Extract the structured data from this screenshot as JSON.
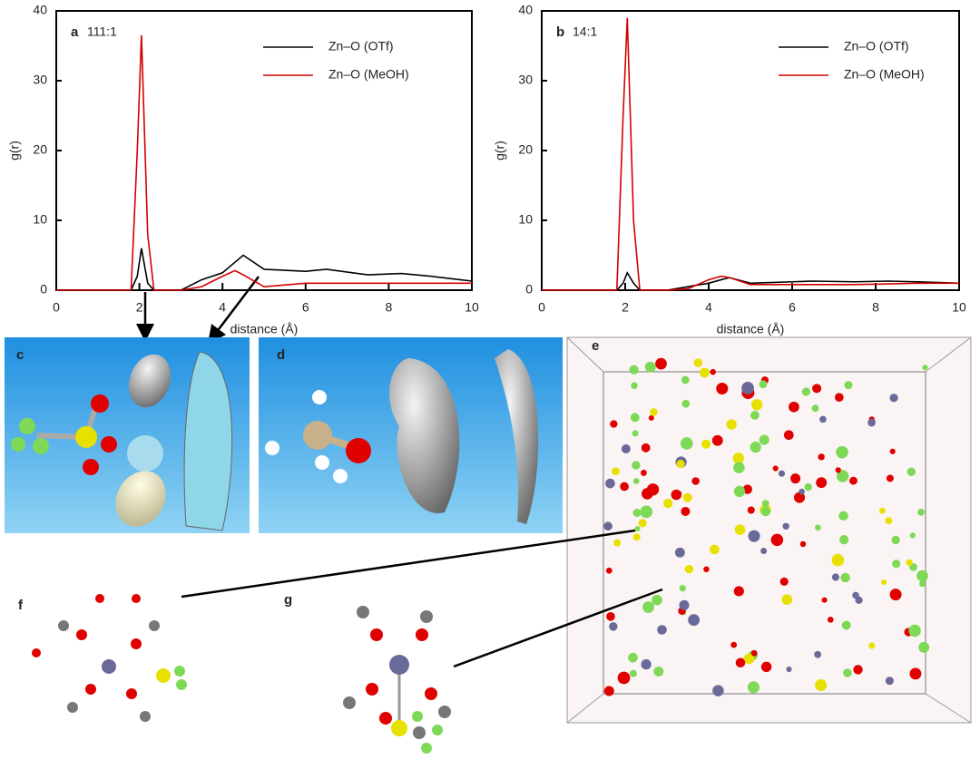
{
  "chart_data": [
    {
      "type": "line",
      "panel": "a",
      "annotation": "111:1",
      "xlabel": "distance (Å)",
      "ylabel": "g(r)",
      "x": [
        0,
        1.8,
        1.95,
        2.05,
        2.2,
        2.35,
        3,
        3.5,
        4,
        4.3,
        4.5,
        5,
        6,
        6.5,
        7.5,
        8.3,
        9,
        10
      ],
      "series": [
        {
          "name": "Zn–O (OTf)",
          "color": "#000000",
          "values": [
            0,
            0,
            2,
            6,
            1,
            0,
            0,
            1.5,
            2.5,
            4,
            5,
            3,
            2.7,
            3,
            2.2,
            2.4,
            2,
            1.3
          ]
        },
        {
          "name": "Zn–O (MeOH)",
          "color": "#d40000",
          "values": [
            0,
            0,
            20,
            36.5,
            8,
            0,
            0,
            0.5,
            2,
            2.8,
            2.2,
            0.5,
            1,
            1,
            1,
            1,
            1,
            1
          ]
        }
      ],
      "xlim": [
        0,
        10
      ],
      "xticks": [
        0,
        2,
        4,
        6,
        8,
        10
      ],
      "ylim": [
        0,
        40
      ],
      "yticks": [
        0,
        10,
        20,
        30,
        40
      ]
    },
    {
      "type": "line",
      "panel": "b",
      "annotation": "14:1",
      "xlabel": "distance (Å)",
      "ylabel": "g(r)",
      "x": [
        0,
        1.8,
        1.95,
        2.05,
        2.2,
        2.35,
        3,
        3.5,
        4,
        4.3,
        4.5,
        5,
        6,
        6.5,
        7.5,
        8.3,
        9,
        10
      ],
      "series": [
        {
          "name": "Zn–O (OTf)",
          "color": "#000000",
          "values": [
            0,
            0,
            1,
            2.5,
            1,
            0,
            0,
            0.5,
            1,
            1.5,
            1.8,
            1,
            1.2,
            1.3,
            1.2,
            1.3,
            1.2,
            1
          ]
        },
        {
          "name": "Zn–O (MeOH)",
          "color": "#d40000",
          "values": [
            0,
            0,
            25,
            39,
            10,
            0,
            0,
            0.2,
            1.5,
            2,
            1.8,
            0.8,
            0.8,
            0.8,
            0.8,
            0.9,
            1,
            1
          ]
        }
      ],
      "xlim": [
        0,
        10
      ],
      "xticks": [
        0,
        2,
        4,
        6,
        8,
        10
      ],
      "ylim": [
        0,
        40
      ],
      "yticks": [
        0,
        10,
        20,
        30,
        40
      ]
    }
  ],
  "panels": [
    "c",
    "d",
    "e",
    "f",
    "g"
  ]
}
